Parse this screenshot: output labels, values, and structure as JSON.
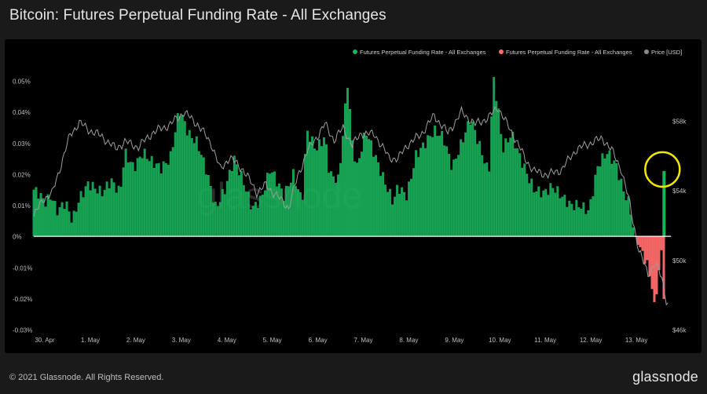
{
  "title": "Bitcoin: Futures Perpetual Funding Rate - All Exchanges",
  "footer": "© 2021 Glassnode. All Rights Reserved.",
  "brand": "glassnode",
  "watermark": "glassnode",
  "colors": {
    "positive": "#19b45c",
    "negative": "#ff6b6b",
    "price": "#9e9e9e",
    "highlight": "#f1e600"
  },
  "chart_data": {
    "type": "bar",
    "legend": [
      {
        "label": "Futures Perpetual Funding Rate - All Exchanges",
        "color": "#19b45c"
      },
      {
        "label": "Futures Perpetual Funding Rate - All Exchanges",
        "color": "#ff6b6b"
      },
      {
        "label": "Price [USD]",
        "color": "#8a8a8a"
      }
    ],
    "legend_position": "top-right",
    "x_ticks": [
      "30. Apr",
      "1. May",
      "2. May",
      "3. May",
      "4. May",
      "5. May",
      "6. May",
      "7. May",
      "8. May",
      "9. May",
      "10. May",
      "11. May",
      "12. May",
      "13. May"
    ],
    "y_left_ticks": [
      "0.05%",
      "0.04%",
      "0.03%",
      "0.02%",
      "0.01%",
      "0%",
      "-0.01%",
      "-0.02%",
      "-0.03%"
    ],
    "y_left_range": [
      -0.03,
      0.05
    ],
    "y_right_ticks": [
      "$58k",
      "$54k",
      "$50k",
      "$46k"
    ],
    "y_right_range": [
      46000,
      58000
    ],
    "x_range_days": [
      0,
      14
    ],
    "funding_rate": {
      "x_days": [
        0,
        0.1,
        0.25,
        0.4,
        0.5,
        0.7,
        0.85,
        1.0,
        1.2,
        1.5,
        1.7,
        1.9,
        2.0,
        2.2,
        2.4,
        2.6,
        2.8,
        3.0,
        3.2,
        3.4,
        3.6,
        3.8,
        4.0,
        4.2,
        4.4,
        4.6,
        4.8,
        5.0,
        5.2,
        5.5,
        5.7,
        5.9,
        6.0,
        6.2,
        6.4,
        6.5,
        6.7,
        6.9,
        7.0,
        7.1,
        7.3,
        7.5,
        7.7,
        7.9,
        8.0,
        8.2,
        8.4,
        8.6,
        8.8,
        9.0,
        9.2,
        9.4,
        9.6,
        9.8,
        10.0,
        10.1,
        10.2,
        10.3,
        10.5,
        10.7,
        10.9,
        11.0,
        11.2,
        11.4,
        11.6,
        11.8,
        12.0,
        12.2,
        12.4,
        12.6,
        12.8,
        12.95,
        13.1,
        13.2,
        13.3,
        13.4,
        13.5,
        13.6,
        13.65,
        13.7,
        13.8,
        13.85,
        13.9,
        14.0
      ],
      "values": [
        0.015,
        0.014,
        0.011,
        0.013,
        0.008,
        0.011,
        0.005,
        0.012,
        0.017,
        0.014,
        0.018,
        0.014,
        0.027,
        0.022,
        0.027,
        0.024,
        0.022,
        0.025,
        0.041,
        0.033,
        0.03,
        0.021,
        0.009,
        0.015,
        0.025,
        0.018,
        0.009,
        0.012,
        0.022,
        0.013,
        0.02,
        0.011,
        0.034,
        0.028,
        0.032,
        0.02,
        0.018,
        0.05,
        0.03,
        0.022,
        0.034,
        0.026,
        0.018,
        0.011,
        0.016,
        0.013,
        0.026,
        0.03,
        0.034,
        0.032,
        0.022,
        0.03,
        0.038,
        0.029,
        0.02,
        0.051,
        0.042,
        0.028,
        0.033,
        0.025,
        0.018,
        0.015,
        0.014,
        0.016,
        0.013,
        0.01,
        0.01,
        0.008,
        0.023,
        0.027,
        0.023,
        0.015,
        0.01,
        0.0,
        -0.003,
        -0.006,
        -0.01,
        -0.017,
        -0.025,
        -0.015,
        -0.005,
        -0.02,
        0.0,
        0.021
      ]
    },
    "price_usd": {
      "x_days": [
        0,
        0.2,
        0.4,
        0.6,
        0.8,
        1.0,
        1.2,
        1.5,
        1.8,
        2.0,
        2.3,
        2.6,
        3.0,
        3.3,
        3.6,
        3.9,
        4.1,
        4.3,
        4.6,
        4.9,
        5.1,
        5.3,
        5.6,
        5.8,
        6.0,
        6.2,
        6.4,
        6.6,
        6.8,
        7.0,
        7.2,
        7.5,
        7.8,
        8.0,
        8.2,
        8.5,
        8.8,
        9.1,
        9.4,
        9.7,
        10.0,
        10.2,
        10.4,
        10.6,
        10.8,
        11.0,
        11.3,
        11.6,
        11.9,
        12.2,
        12.5,
        12.7,
        12.9,
        13.1,
        13.3,
        13.5,
        13.65,
        13.8,
        13.9,
        14.0
      ],
      "values": [
        52500,
        53500,
        53800,
        55500,
        57200,
        57900,
        57500,
        57100,
        56400,
        56800,
        56500,
        57300,
        57800,
        58500,
        57800,
        56700,
        55200,
        55900,
        55200,
        53900,
        54300,
        53800,
        53000,
        54800,
        56200,
        57000,
        57800,
        56900,
        57600,
        56600,
        57300,
        57200,
        55900,
        55800,
        56600,
        57200,
        58300,
        57300,
        58500,
        57800,
        58200,
        58800,
        57800,
        56900,
        55800,
        55100,
        54900,
        55200,
        56300,
        56700,
        57000,
        56300,
        55300,
        53200,
        50500,
        49200,
        49800,
        49000,
        47700,
        47100
      ]
    },
    "annotations": [
      {
        "type": "circle",
        "x_day": 13.85,
        "value": 0.021,
        "color": "#f1e600"
      }
    ]
  }
}
